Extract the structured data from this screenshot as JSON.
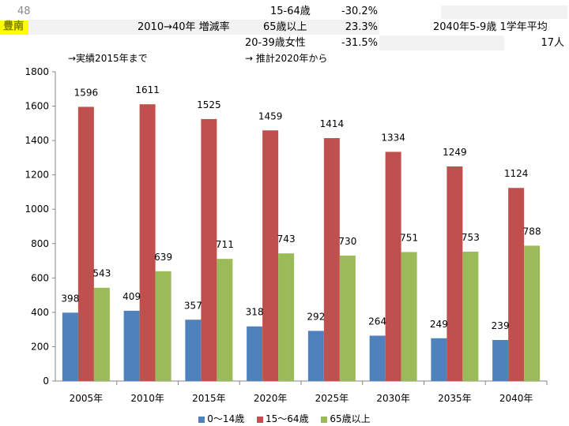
{
  "header": {
    "number": "48",
    "city": "豊南",
    "rate_label": "2010→40年 増減率",
    "rows": [
      {
        "label": "15-64歳",
        "value": "-30.2%"
      },
      {
        "label": "65歳以上",
        "value": "23.3%"
      },
      {
        "label": "20-39歳女性",
        "value": "-31.5%"
      }
    ],
    "avg_label": "2040年5-9歳 1学年平均",
    "avg_value": "17人",
    "note_actual": "→実績2015年まで",
    "note_forecast": "→ 推計2020年から"
  },
  "colors": {
    "city_highlight": "#ffff00",
    "series_0_14": "#4f81bd",
    "series_15_64": "#c0504d",
    "series_65": "#9bbb59"
  },
  "chart_data": {
    "type": "bar",
    "categories": [
      "2005年",
      "2010年",
      "2015年",
      "2020年",
      "2025年",
      "2030年",
      "2035年",
      "2040年"
    ],
    "series": [
      {
        "name": "0～14歳",
        "values": [
          398,
          409,
          357,
          318,
          292,
          264,
          249,
          239
        ]
      },
      {
        "name": "15～64歳",
        "values": [
          1596,
          1611,
          1525,
          1459,
          1414,
          1334,
          1249,
          1124
        ]
      },
      {
        "name": "65歳以上",
        "values": [
          543,
          639,
          711,
          743,
          730,
          751,
          753,
          788
        ]
      }
    ],
    "ylim": [
      0,
      1800
    ],
    "yticks": [
      0,
      200,
      400,
      600,
      800,
      1000,
      1200,
      1400,
      1600,
      1800
    ],
    "title": "",
    "xlabel": "",
    "ylabel": "",
    "grid": false,
    "legend_position": "bottom"
  }
}
